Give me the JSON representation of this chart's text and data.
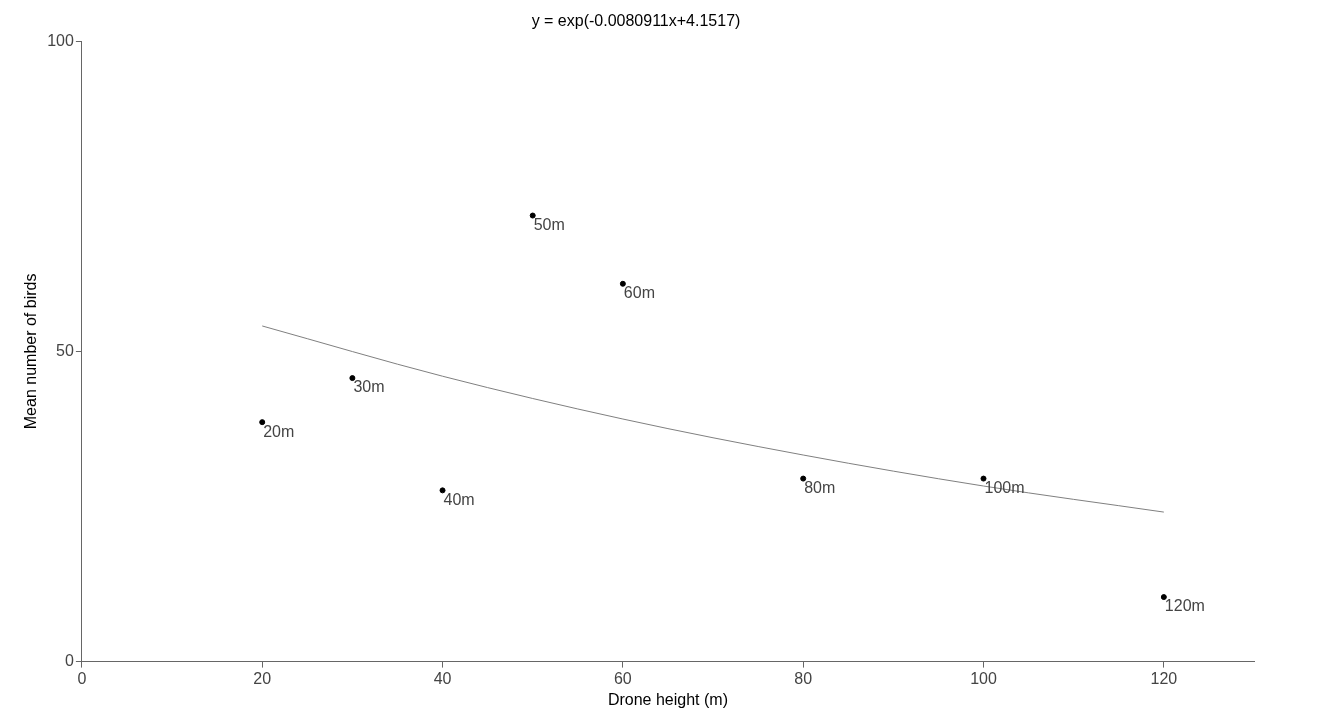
{
  "chart_data": {
    "type": "scatter",
    "title": "y = exp(-0.0080911x+4.1517)",
    "xlabel": "Drone height (m)",
    "ylabel": "Mean number of birds",
    "x": [
      20,
      30,
      40,
      50,
      60,
      80,
      100,
      120
    ],
    "series": [
      {
        "type": "scatter",
        "marker": "circle",
        "color": "#000000",
        "values": [
          38.6,
          45.7,
          27.6,
          71.9,
          60.9,
          29.5,
          29.5,
          10.4
        ]
      },
      {
        "type": "line",
        "marker": "none",
        "color": "#808080",
        "x": [
          20,
          40,
          60,
          80,
          100,
          120
        ],
        "values": [
          54.1,
          46.0,
          39.1,
          33.3,
          28.3,
          24.1
        ]
      }
    ],
    "annotations": [
      {
        "text": "20m",
        "x": 20,
        "y": 38.6
      },
      {
        "text": "30m",
        "x": 30,
        "y": 45.7
      },
      {
        "text": "40m",
        "x": 40,
        "y": 27.6
      },
      {
        "text": "50m",
        "x": 50,
        "y": 71.9
      },
      {
        "text": "60m",
        "x": 60,
        "y": 60.9
      },
      {
        "text": "80m",
        "x": 80,
        "y": 29.5
      },
      {
        "text": "100m",
        "x": 100,
        "y": 29.5
      },
      {
        "text": "120m",
        "x": 120,
        "y": 10.4
      }
    ],
    "xlim": [
      0,
      130
    ],
    "xticks": [
      0,
      20,
      40,
      60,
      80,
      100,
      120
    ],
    "ylim": [
      0,
      100
    ],
    "yticks": [
      0,
      50,
      100
    ],
    "grid": false,
    "legend": false,
    "line_style": "solid"
  }
}
